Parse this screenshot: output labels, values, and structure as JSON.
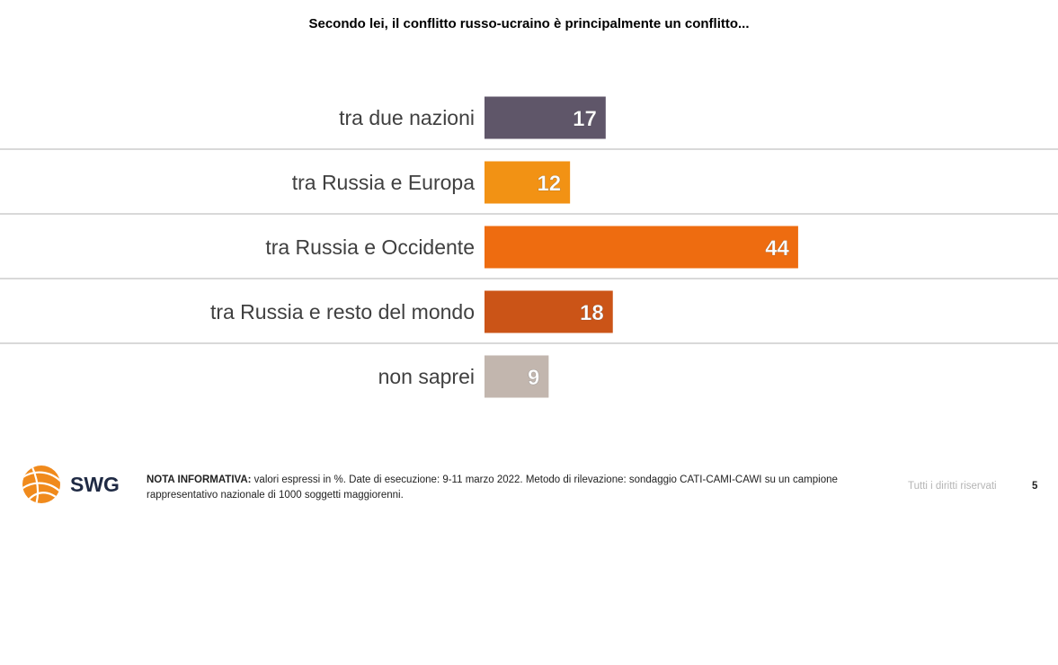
{
  "chart_data": {
    "type": "bar",
    "orientation": "horizontal",
    "title": "Secondo lei, il conflitto russo-ucraino è principalmente un conflitto...",
    "categories": [
      "tra due nazioni",
      "tra Russia e Europa",
      "tra Russia e Occidente",
      "tra Russia e resto del mondo",
      "non saprei"
    ],
    "values": [
      17,
      12,
      44,
      18,
      9
    ],
    "colors": [
      "#5f5669",
      "#f29214",
      "#ee6c10",
      "#cb5417",
      "#c2b6ae"
    ],
    "xlim": [
      0,
      100
    ],
    "grid": false,
    "legend": "none",
    "data_labels": true
  },
  "footer": {
    "logo_text": "SWG",
    "note_label": "NOTA INFORMATIVA:",
    "note_text": " valori espressi in %. Date di esecuzione: 9-11 marzo 2022. Metodo di rilevazione: sondaggio CATI-CAMI-CAWI su un campione rappresentativo nazionale di 1000 soggetti maggiorenni.",
    "rights": "Tutti i diritti riservati",
    "page_number": "5"
  }
}
